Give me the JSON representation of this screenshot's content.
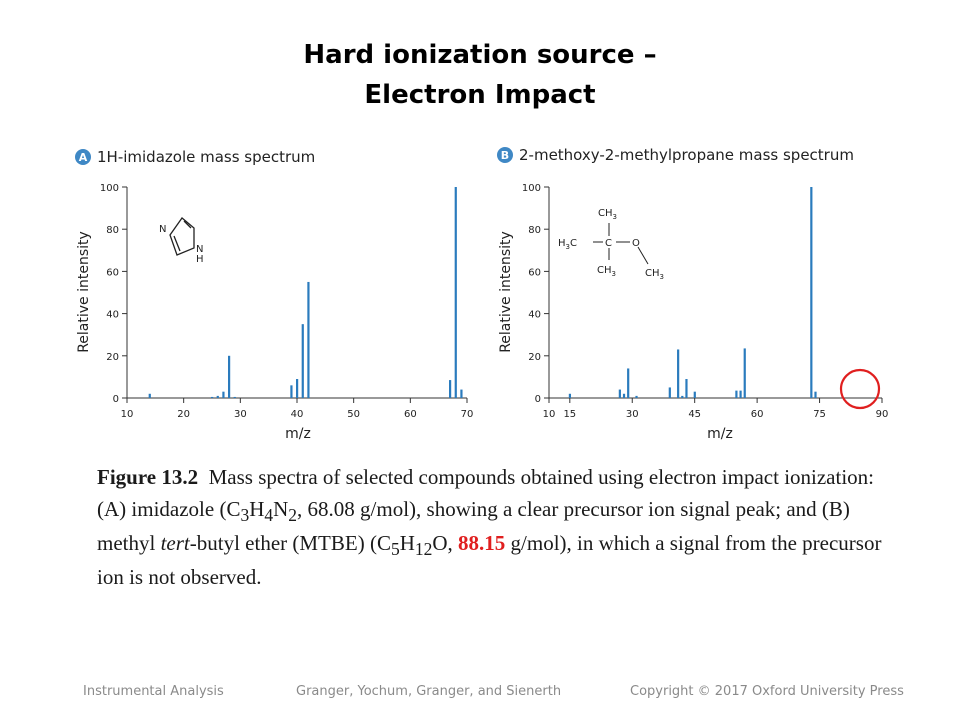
{
  "slide": {
    "title_line1": "Hard ionization source –",
    "title_line2": "Electron Impact"
  },
  "caption": {
    "fig_label": "Figure 13.2",
    "text1": "Mass spectra of selected compounds obtained using electron impact ionization: (A) imidazole (C",
    "s1": "3",
    "t2": "H",
    "s2": "4",
    "t3": "N",
    "s3": "2",
    "text4": ", 68.08 g/mol), showing a clear precursor ion signal peak; and (B) methyl ",
    "italic": "tert",
    "text5": "-butyl ether (MTBE) (C",
    "s5": "5",
    "t6": "H",
    "s6": "12",
    "t7": "O, ",
    "highlight": "88.15",
    "text8": " g/mol), in which a signal from the precursor ion is not observed."
  },
  "footer": {
    "left": "Instrumental Analysis",
    "center": "Granger, Yochum, Granger, and Sienerth",
    "right": "Copyright © 2017 Oxford University Press"
  },
  "colors": {
    "bar": "#2a7bbd",
    "badge": "#3f88c5",
    "highlight": "#e01f1f"
  },
  "chart_data": [
    {
      "type": "bar",
      "badge": "A",
      "title": "1H-imidazole mass spectrum",
      "xlabel": "m/z",
      "ylabel": "Relative intensity",
      "xlim": [
        10,
        70
      ],
      "ylim": [
        0,
        100
      ],
      "xticks": [
        10,
        20,
        30,
        40,
        50,
        60,
        70
      ],
      "yticks": [
        0,
        20,
        40,
        60,
        80,
        100
      ],
      "x": [
        14,
        25,
        26,
        27,
        28,
        29,
        39,
        40,
        41,
        42,
        67,
        68,
        69
      ],
      "values": [
        2,
        0.5,
        1,
        3,
        20,
        0.5,
        6,
        9,
        35,
        55,
        8.5,
        100,
        4
      ],
      "structure": {
        "ring_n": "N",
        "nh_n": "N",
        "nh_h": "H"
      }
    },
    {
      "type": "bar",
      "badge": "B",
      "title": "2-methoxy-2-methylpropane mass spectrum",
      "xlabel": "m/z",
      "ylabel": "Relative intensity",
      "xlim": [
        10,
        90
      ],
      "ylim": [
        0,
        100
      ],
      "xticks": [
        10,
        15,
        30,
        45,
        60,
        75,
        90
      ],
      "yticks": [
        0,
        20,
        40,
        60,
        80,
        100
      ],
      "x": [
        15,
        27,
        28,
        29,
        31,
        39,
        41,
        42,
        43,
        45,
        55,
        56,
        57,
        73,
        74
      ],
      "values": [
        2,
        4,
        2,
        14,
        1,
        5,
        23,
        1,
        9,
        3,
        3.5,
        3.5,
        23.5,
        100,
        3
      ],
      "structure": {
        "top": "CH",
        "top_sub": "3",
        "left": "H",
        "left_sub": "3",
        "left_c": "C",
        "center": "C",
        "o": "O",
        "bottom": "CH",
        "bottom_sub": "3",
        "right": "CH",
        "right_sub": "3"
      }
    }
  ]
}
